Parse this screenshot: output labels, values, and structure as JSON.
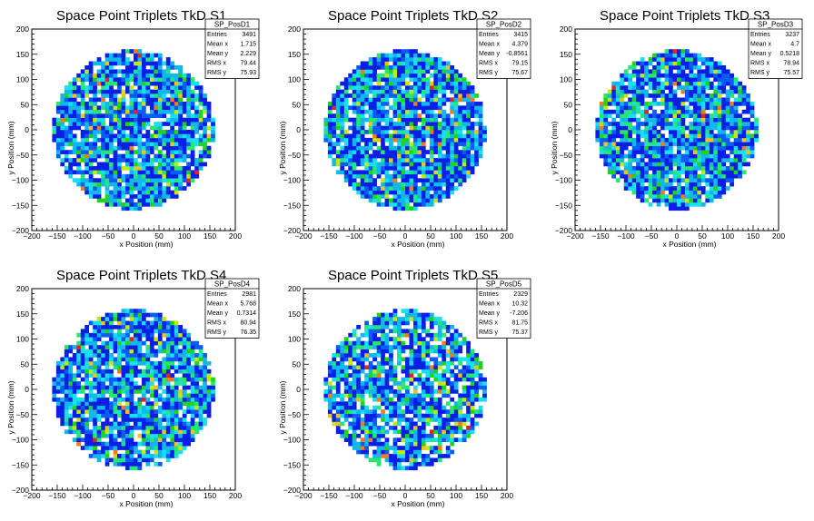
{
  "chart_data": [
    {
      "type": "heatmap",
      "title": "Space Point Triplets TkD S1",
      "xlabel": "x Position (mm)",
      "ylabel": "y Position (mm)",
      "xlim": [
        -200,
        200
      ],
      "ylim": [
        -200,
        200
      ],
      "xticks": [
        "−200",
        "−150",
        "−100",
        "−50",
        "0",
        "50",
        "100",
        "150",
        "200"
      ],
      "yticks": [
        "200",
        "150",
        "100",
        "50",
        "0",
        "−50",
        "−100",
        "−150",
        "−200"
      ],
      "stats": {
        "name": "SP_PosD1",
        "rows": [
          {
            "label": "Entries",
            "value": "3491"
          },
          {
            "label": "Mean x",
            "value": "1.715"
          },
          {
            "label": "Mean y",
            "value": "2.229"
          },
          {
            "label": "RMS x",
            "value": "79.44"
          },
          {
            "label": "RMS y",
            "value": "75.93"
          }
        ]
      },
      "entries": 3491,
      "radius": 158,
      "bin_width": 8,
      "seed": 11
    },
    {
      "type": "heatmap",
      "title": "Space Point Triplets TkD S2",
      "xlabel": "x Position (mm)",
      "ylabel": "y Position (mm)",
      "xlim": [
        -200,
        200
      ],
      "ylim": [
        -200,
        200
      ],
      "xticks": [
        "−200",
        "−150",
        "−100",
        "−50",
        "0",
        "50",
        "100",
        "150",
        "200"
      ],
      "yticks": [
        "200",
        "150",
        "100",
        "50",
        "0",
        "−50",
        "−100",
        "−150",
        "−200"
      ],
      "stats": {
        "name": "SP_PosD2",
        "rows": [
          {
            "label": "Entries",
            "value": "3415"
          },
          {
            "label": "Mean x",
            "value": "4.379"
          },
          {
            "label": "Mean y",
            "value": "-0.8561"
          },
          {
            "label": "RMS x",
            "value": "79.15"
          },
          {
            "label": "RMS y",
            "value": "75.67"
          }
        ]
      },
      "entries": 3415,
      "radius": 158,
      "bin_width": 8,
      "seed": 23
    },
    {
      "type": "heatmap",
      "title": "Space Point Triplets TkD S3",
      "xlabel": "x Position (mm)",
      "ylabel": "y Position (mm)",
      "xlim": [
        -200,
        200
      ],
      "ylim": [
        -200,
        200
      ],
      "xticks": [
        "−200",
        "−150",
        "−100",
        "−50",
        "0",
        "50",
        "100",
        "150",
        "200"
      ],
      "yticks": [
        "200",
        "150",
        "100",
        "50",
        "0",
        "−50",
        "−100",
        "−150",
        "−200"
      ],
      "stats": {
        "name": "SP_PosD3",
        "rows": [
          {
            "label": "Entries",
            "value": "3237"
          },
          {
            "label": "Mean x",
            "value": "4.7"
          },
          {
            "label": "Mean y",
            "value": "0.5218"
          },
          {
            "label": "RMS x",
            "value": "78.94"
          },
          {
            "label": "RMS y",
            "value": "75.57"
          }
        ]
      },
      "entries": 3237,
      "radius": 158,
      "bin_width": 8,
      "seed": 37
    },
    {
      "type": "heatmap",
      "title": "Space Point Triplets TkD S4",
      "xlabel": "x Position (mm)",
      "ylabel": "y Position (mm)",
      "xlim": [
        -200,
        200
      ],
      "ylim": [
        -200,
        200
      ],
      "xticks": [
        "−200",
        "−150",
        "−100",
        "−50",
        "0",
        "50",
        "100",
        "150",
        "200"
      ],
      "yticks": [
        "200",
        "150",
        "100",
        "50",
        "0",
        "−50",
        "−100",
        "−150",
        "−200"
      ],
      "stats": {
        "name": "SP_PosD4",
        "rows": [
          {
            "label": "Entries",
            "value": "2981"
          },
          {
            "label": "Mean x",
            "value": "5.768"
          },
          {
            "label": "Mean y",
            "value": "0.7314"
          },
          {
            "label": "RMS x",
            "value": "80.94"
          },
          {
            "label": "RMS y",
            "value": "76.35"
          }
        ]
      },
      "entries": 2981,
      "radius": 158,
      "bin_width": 8,
      "seed": 53
    },
    {
      "type": "heatmap",
      "title": "Space Point Triplets TkD S5",
      "xlabel": "x Position (mm)",
      "ylabel": "y Position (mm)",
      "xlim": [
        -200,
        200
      ],
      "ylim": [
        -200,
        200
      ],
      "xticks": [
        "−200",
        "−150",
        "−100",
        "−50",
        "0",
        "50",
        "100",
        "150",
        "200"
      ],
      "yticks": [
        "200",
        "150",
        "100",
        "50",
        "0",
        "−50",
        "−100",
        "−150",
        "−200"
      ],
      "stats": {
        "name": "SP_PosD5",
        "rows": [
          {
            "label": "Entries",
            "value": "2329"
          },
          {
            "label": "Mean x",
            "value": "10.32"
          },
          {
            "label": "Mean y",
            "value": "-7.206"
          },
          {
            "label": "RMS x",
            "value": "81.75"
          },
          {
            "label": "RMS y",
            "value": "75.37"
          }
        ]
      },
      "entries": 2329,
      "radius": 158,
      "bin_width": 8,
      "seed": 71
    }
  ],
  "colors": {
    "palette": [
      "#0a1fe6",
      "#0a5cf5",
      "#13b8ea",
      "#18e0ee",
      "#24e86f",
      "#22d418",
      "#c8e614",
      "#f0c21c",
      "#f27a1a",
      "#e4231a"
    ],
    "axis": "#000000",
    "background": "#ffffff"
  }
}
